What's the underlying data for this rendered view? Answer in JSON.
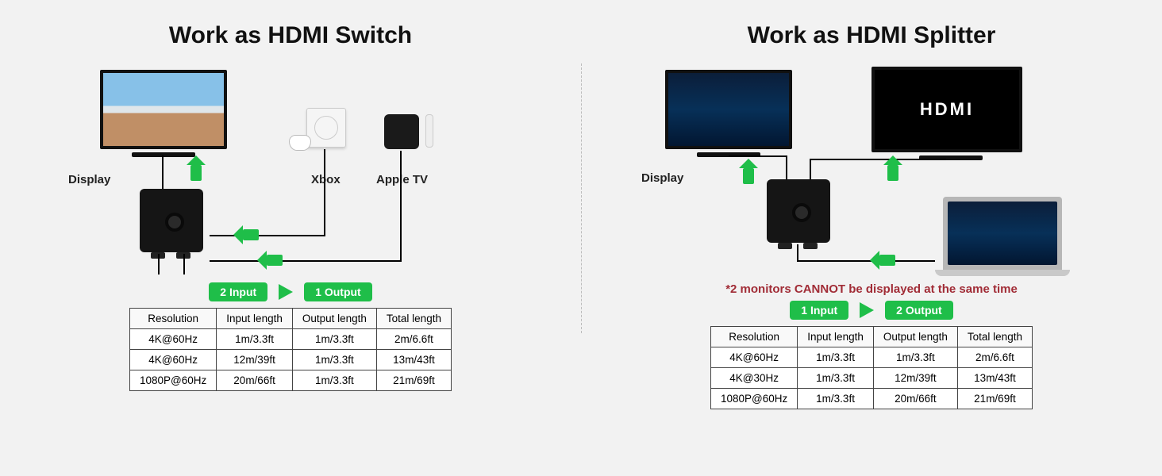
{
  "colors": {
    "accent": "#1fbe49",
    "warn": "#a12c36",
    "border": "#444444",
    "bg": "#f2f2f2"
  },
  "left": {
    "title": "Work as HDMI Switch",
    "labels": {
      "display": "Display",
      "xbox": "Xbox",
      "appletv": "Apple TV"
    },
    "badge1": "2 Input",
    "badge2": "1 Output",
    "table": {
      "columns": [
        "Resolution",
        "Input length",
        "Output length",
        "Total length"
      ],
      "rows": [
        [
          "4K@60Hz",
          "1m/3.3ft",
          "1m/3.3ft",
          "2m/6.6ft"
        ],
        [
          "4K@60Hz",
          "12m/39ft",
          "1m/3.3ft",
          "13m/43ft"
        ],
        [
          "1080P@60Hz",
          "20m/66ft",
          "1m/3.3ft",
          "21m/69ft"
        ]
      ]
    }
  },
  "right": {
    "title": "Work as HDMI Splitter",
    "labels": {
      "display": "Display",
      "hdmi": "HDMI"
    },
    "warning": "*2 monitors CANNOT be displayed at the same time",
    "badge1": "1 Input",
    "badge2": "2 Output",
    "table": {
      "columns": [
        "Resolution",
        "Input length",
        "Output length",
        "Total length"
      ],
      "rows": [
        [
          "4K@60Hz",
          "1m/3.3ft",
          "1m/3.3ft",
          "2m/6.6ft"
        ],
        [
          "4K@30Hz",
          "1m/3.3ft",
          "12m/39ft",
          "13m/43ft"
        ],
        [
          "1080P@60Hz",
          "1m/3.3ft",
          "20m/66ft",
          "21m/69ft"
        ]
      ]
    }
  }
}
